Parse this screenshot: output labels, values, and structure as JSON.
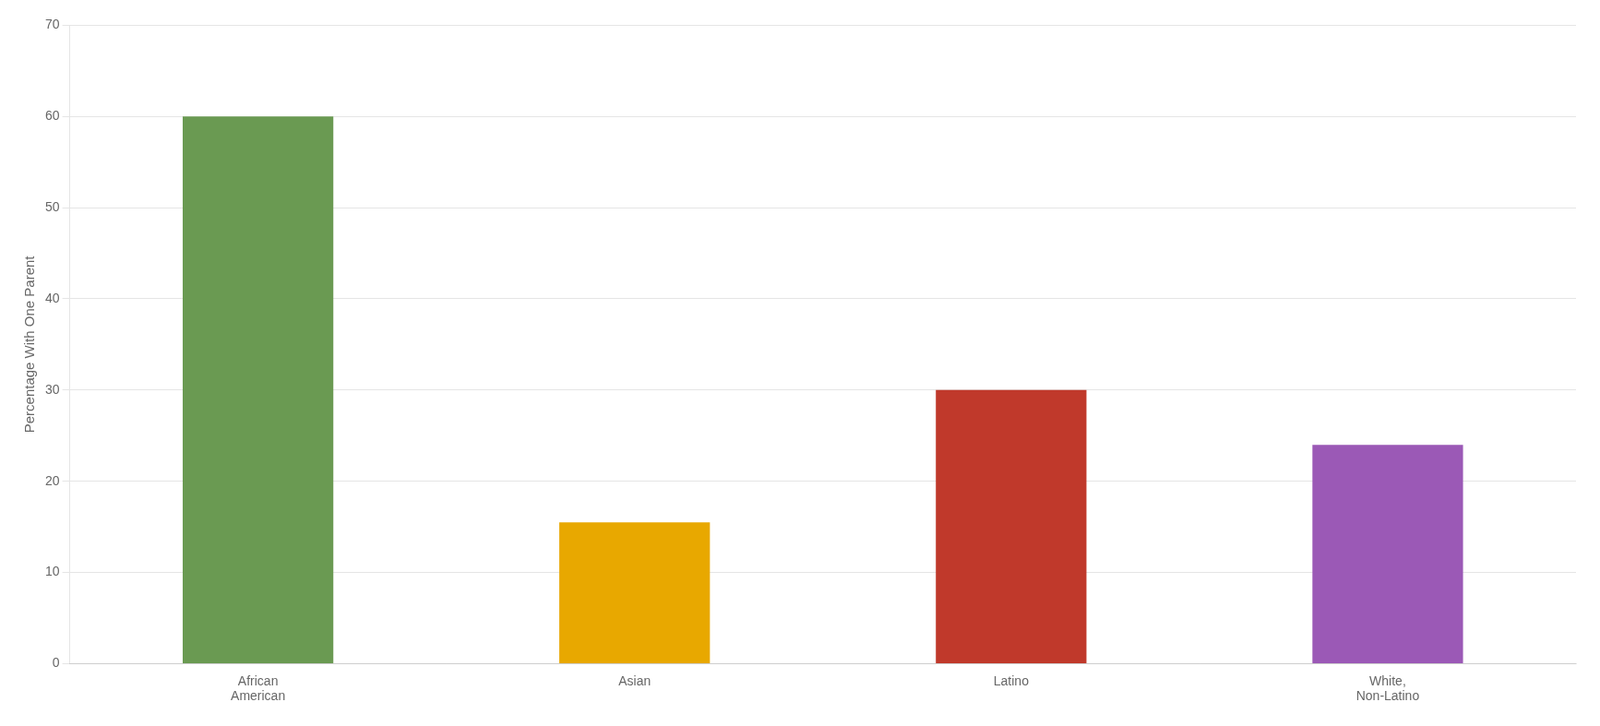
{
  "chart_data": {
    "type": "bar",
    "categories": [
      "African\nAmerican",
      "Asian",
      "Latino",
      "White,\nNon-Latino"
    ],
    "values": [
      60,
      15.5,
      30,
      24
    ],
    "colors": [
      "#6a9a52",
      "#e8a800",
      "#c0392b",
      "#9b59b6"
    ],
    "ylabel": "Percentage With One Parent",
    "ylim": [
      0,
      70
    ],
    "yticks": [
      0,
      10,
      20,
      30,
      40,
      50,
      60,
      70
    ],
    "grid": true
  }
}
